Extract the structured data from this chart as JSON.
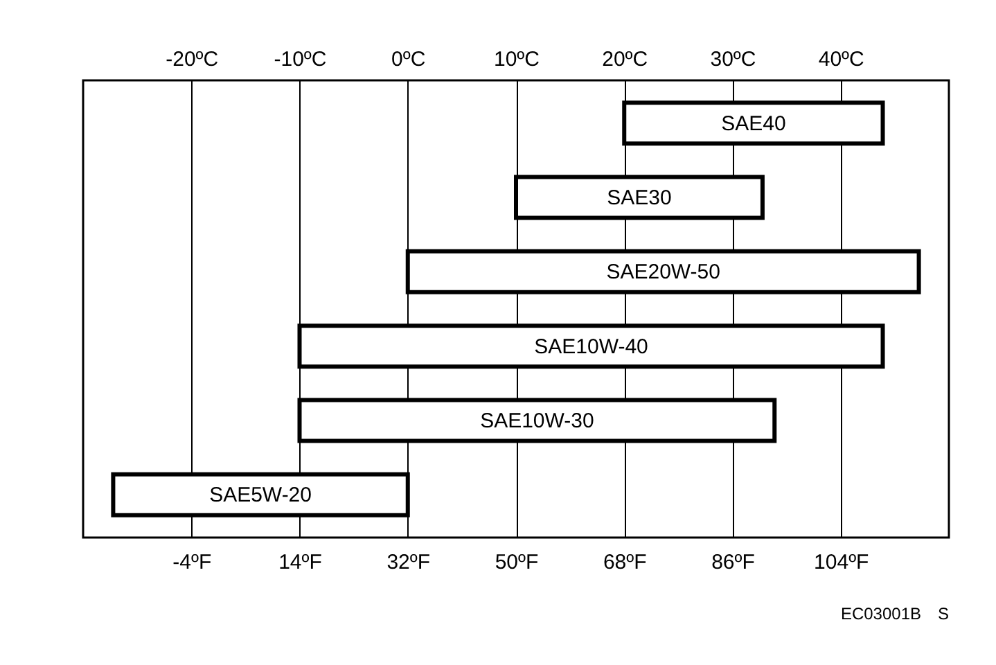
{
  "chart_data": {
    "type": "bar",
    "orientation": "horizontal",
    "categories": [
      "SAE40",
      "SAE30",
      "SAE20W-50",
      "SAE10W-40",
      "SAE10W-30",
      "SAE5W-20"
    ],
    "base": [
      68,
      50,
      32,
      14,
      14,
      32
    ],
    "values": [
      43,
      41,
      85,
      97,
      79,
      -49
    ],
    "color": "#ffffff",
    "xlim": [
      -22,
      122
    ],
    "xticks": [
      {
        "value": -4,
        "label": "-4ºF"
      },
      {
        "value": 14,
        "label": "14ºF"
      },
      {
        "value": 32,
        "label": "32ºF"
      },
      {
        "value": 50,
        "label": "50ºF"
      },
      {
        "value": 68,
        "label": "68ºF"
      },
      {
        "value": 86,
        "label": "86ºF"
      },
      {
        "value": 104,
        "label": "104ºF"
      }
    ],
    "x2lim": [
      -30,
      50
    ],
    "x2ticks": [
      {
        "value": -20,
        "label": "-20ºC"
      },
      {
        "value": -10,
        "label": "-10ºC"
      },
      {
        "value": 0,
        "label": "0ºC"
      },
      {
        "value": 10,
        "label": "10ºC"
      },
      {
        "value": 20,
        "label": "20ºC"
      },
      {
        "value": 30,
        "label": "30ºC"
      },
      {
        "value": 40,
        "label": "40ºC"
      }
    ],
    "grid": "x",
    "annotations": [
      "EC03001B　S"
    ]
  }
}
